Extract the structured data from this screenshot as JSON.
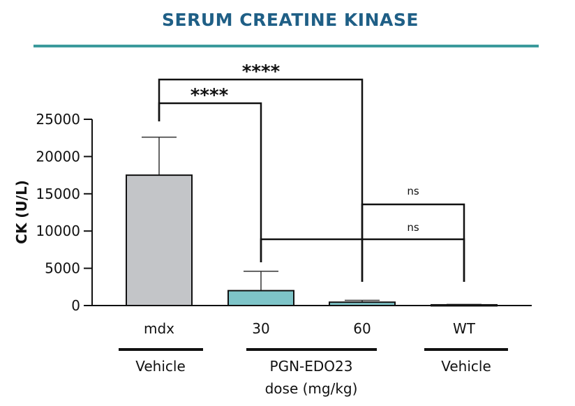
{
  "title": "SERUM CREATINE KINASE",
  "colors": {
    "title": "#1f5f86",
    "rule": "#3b9a9c",
    "vehicle_bar": "#c3c5c8",
    "treated_bar": "#7ec4c8"
  },
  "chart_data": {
    "type": "bar",
    "ylabel": "CK (U/L)",
    "ylim": [
      0,
      25000
    ],
    "yticks": [
      0,
      5000,
      10000,
      15000,
      20000,
      25000
    ],
    "ytick_labels": [
      "0",
      "5000",
      "10000",
      "15000",
      "20000",
      "25000"
    ],
    "categories": [
      "mdx",
      "30",
      "60",
      "WT"
    ],
    "values": [
      17500,
      2000,
      450,
      100
    ],
    "error_upper": [
      22600,
      4600,
      700,
      150
    ],
    "bar_colors": [
      "#c3c5c8",
      "#7ec4c8",
      "#7ec4c8",
      "#7ec4c8"
    ],
    "groups": [
      {
        "label": "Vehicle",
        "categories": [
          "mdx"
        ]
      },
      {
        "label": "PGN-EDO23",
        "sublabel": "dose (mg/kg)",
        "categories": [
          "30",
          "60"
        ]
      },
      {
        "label": "Vehicle",
        "categories": [
          "WT"
        ]
      }
    ],
    "annotations": [
      {
        "from": "mdx",
        "to": "60",
        "label": "****"
      },
      {
        "from": "mdx",
        "to": "30",
        "label": "****"
      },
      {
        "from": "30",
        "to": "WT",
        "label": "ns"
      },
      {
        "from": "60",
        "to": "WT",
        "label": "ns"
      }
    ]
  }
}
